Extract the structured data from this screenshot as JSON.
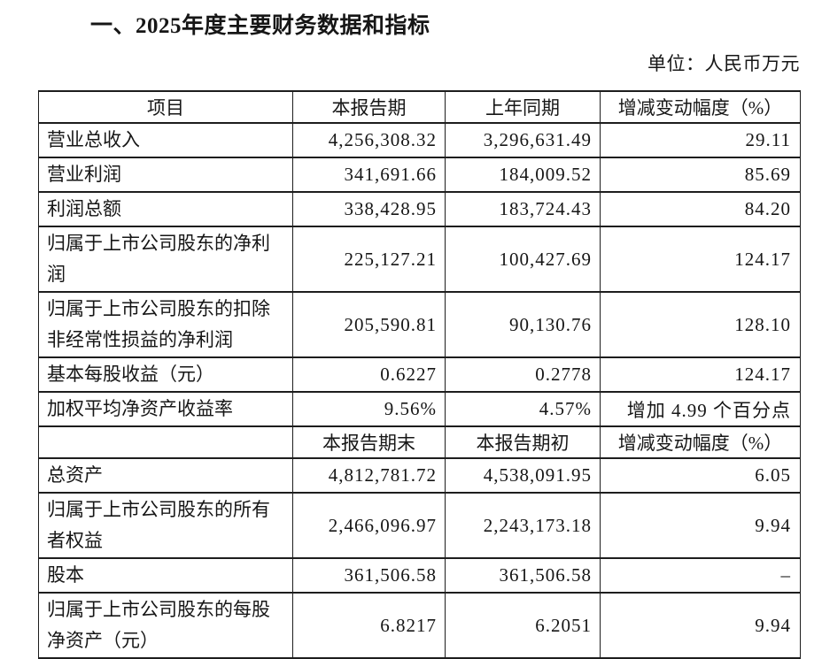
{
  "document": {
    "title": "一、2025年度主要财务数据和指标",
    "unit_note": "单位：人民币万元"
  },
  "table": {
    "rows": [
      {
        "cells": [
          "项目",
          "本报告期",
          "上年同期",
          "增减变动幅度（%）"
        ]
      },
      {
        "cells": [
          "营业总收入",
          "4,256,308.32",
          "3,296,631.49",
          "29.11"
        ]
      },
      {
        "cells": [
          "营业利润",
          "341,691.66",
          "184,009.52",
          "85.69"
        ]
      },
      {
        "cells": [
          "利润总额",
          "338,428.95",
          "183,724.43",
          "84.20"
        ]
      },
      {
        "cells": [
          "归属于上市公司股东的净利润",
          "225,127.21",
          "100,427.69",
          "124.17"
        ]
      },
      {
        "cells": [
          "归属于上市公司股东的扣除非经常性损益的净利润",
          "205,590.81",
          "90,130.76",
          "128.10"
        ]
      },
      {
        "cells": [
          "基本每股收益（元）",
          "0.6227",
          "0.2778",
          "124.17"
        ]
      },
      {
        "cells": [
          "加权平均净资产收益率",
          "9.56%",
          "4.57%",
          "增加 4.99 个百分点"
        ]
      },
      {
        "cells": [
          "",
          "本报告期末",
          "本报告期初",
          "增减变动幅度（%）"
        ]
      },
      {
        "cells": [
          "总资产",
          "4,812,781.72",
          "4,538,091.95",
          "6.05"
        ]
      },
      {
        "cells": [
          "归属于上市公司股东的所有者权益",
          "2,466,096.97",
          "2,243,173.18",
          "9.94"
        ]
      },
      {
        "cells": [
          "股本",
          "361,506.58",
          "361,506.58",
          "–"
        ]
      },
      {
        "cells": [
          "归属于上市公司股东的每股净资产（元）",
          "6.8217",
          "6.2051",
          "9.94"
        ]
      }
    ]
  }
}
